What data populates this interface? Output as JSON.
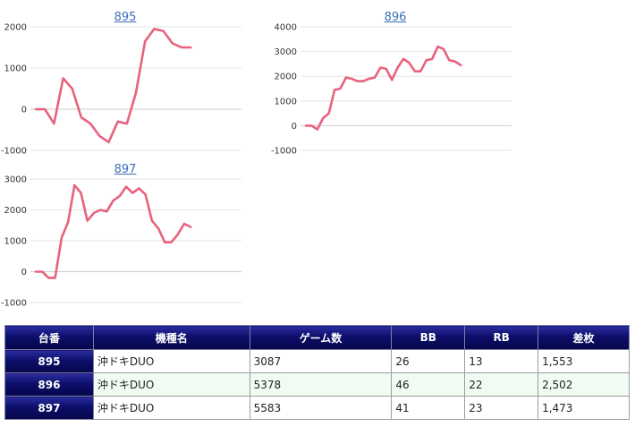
{
  "chart_data": [
    {
      "type": "line",
      "title": "895",
      "yticks": [
        2000,
        1000,
        0,
        -1000
      ],
      "ylim": [
        -1000,
        2000
      ],
      "y": [
        0,
        0,
        -350,
        750,
        500,
        -200,
        -350,
        -650,
        -800,
        -300,
        -350,
        400,
        1650,
        1950,
        1900,
        1600,
        1500,
        1500
      ],
      "grid": true
    },
    {
      "type": "line",
      "title": "896",
      "yticks": [
        4000,
        3000,
        2000,
        1000,
        0,
        -1000
      ],
      "ylim": [
        -1000,
        4000
      ],
      "y": [
        0,
        0,
        -150,
        300,
        500,
        1450,
        1500,
        1950,
        1900,
        1800,
        1800,
        1900,
        1950,
        2350,
        2300,
        1850,
        2350,
        2700,
        2550,
        2200,
        2200,
        2650,
        2700,
        3200,
        3100,
        2650,
        2600,
        2450
      ],
      "grid": true
    },
    {
      "type": "line",
      "title": "897",
      "yticks": [
        3000,
        2000,
        1000,
        0,
        -1000
      ],
      "ylim": [
        -1000,
        3000
      ],
      "y": [
        0,
        0,
        -200,
        -200,
        1100,
        1600,
        2800,
        2550,
        1650,
        1900,
        2000,
        1950,
        2300,
        2450,
        2750,
        2550,
        2700,
        2500,
        1650,
        1400,
        950,
        950,
        1200,
        1550,
        1450
      ],
      "grid": true
    }
  ],
  "table": {
    "headers": [
      "台番",
      "機種名",
      "ゲーム数",
      "BB",
      "RB",
      "差枚"
    ],
    "rows": [
      [
        "895",
        "沖ドキDUO",
        "3087",
        "26",
        "13",
        "1,553"
      ],
      [
        "896",
        "沖ドキDUO",
        "5378",
        "46",
        "22",
        "2,502"
      ],
      [
        "897",
        "沖ドキDUO",
        "5583",
        "41",
        "23",
        "1,473"
      ]
    ]
  },
  "colors": {
    "line": "#e8627e",
    "title_link": "#3b6fb6",
    "header_bg": "#0c0e6a",
    "alt_row": "#f2fbf2"
  }
}
